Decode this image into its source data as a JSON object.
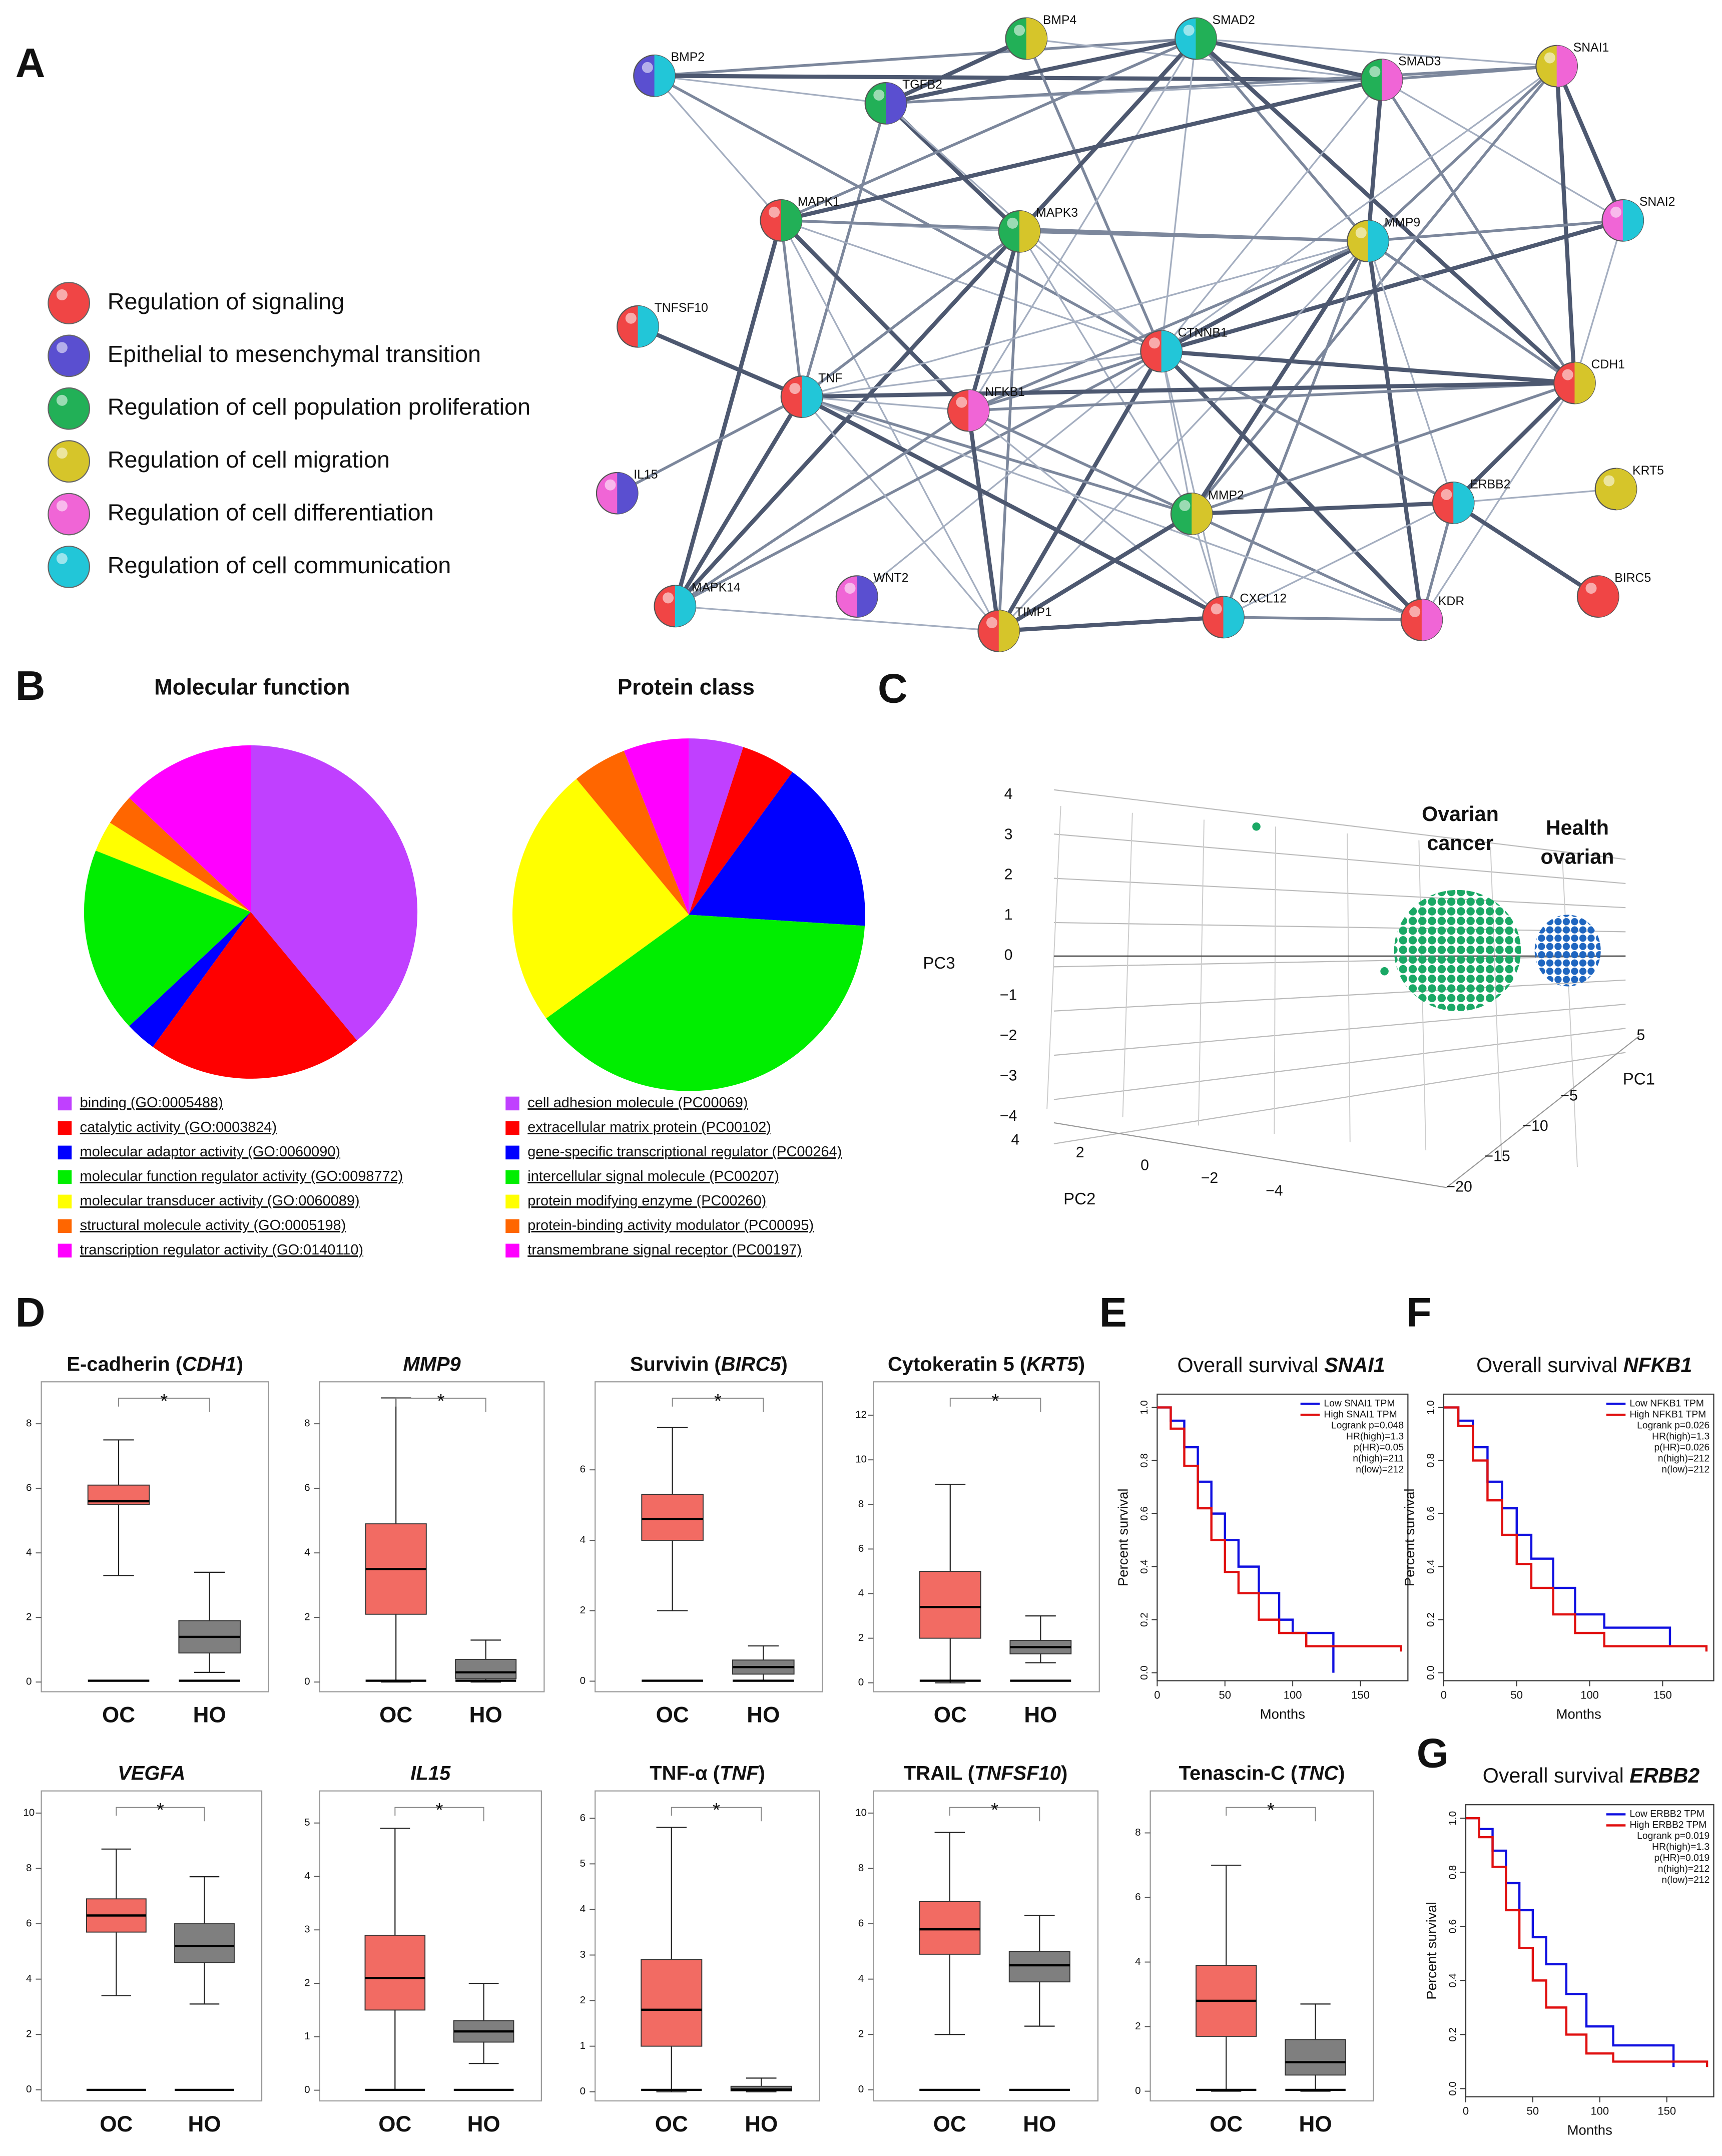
{
  "panel_labels": [
    "A",
    "B",
    "C",
    "D",
    "E",
    "F",
    "G"
  ],
  "network": {
    "nodes": [
      "BMP2",
      "BMP4",
      "SMAD2",
      "SMAD3",
      "SNAI1",
      "TGFB2",
      "MAPK1",
      "MAPK3",
      "MMP9",
      "SNAI2",
      "TNFSF10",
      "CTNNB1",
      "CDH1",
      "TNF",
      "NFKB1",
      "IL15",
      "MMP2",
      "ERBB2",
      "KRT5",
      "WNT2",
      "MAPK14",
      "TIMP1",
      "CXCL12",
      "KDR",
      "BIRC5"
    ]
  },
  "legend": [
    {
      "label": "Regulation of signaling",
      "color": "#f04545"
    },
    {
      "label": "Epithelial to mesenchymal transition",
      "color": "#5a4fd0"
    },
    {
      "label": "Regulation of cell population proliferation",
      "color": "#22b057"
    },
    {
      "label": "Regulation of cell migration",
      "color": "#d6c52a"
    },
    {
      "label": "Regulation of cell differentiation",
      "color": "#f065d6"
    },
    {
      "label": "Regulation of cell communication",
      "color": "#22c6d8"
    }
  ],
  "pies": [
    {
      "type": "pie",
      "title": "Molecular function",
      "categories": [
        "binding (GO:0005488)",
        "catalytic activity (GO:0003824)",
        "molecular adaptor activity (GO:0060090)",
        "molecular function regulator activity (GO:0098772)",
        "molecular transducer activity (GO:0060089)",
        "structural molecule activity (GO:0005198)",
        "transcription regulator activity (GO:0140110)"
      ],
      "values": [
        39,
        21,
        3,
        18,
        3,
        3,
        13
      ],
      "colors": [
        "#c040ff",
        "#ff0000",
        "#0000ff",
        "#00ee00",
        "#ffff00",
        "#ff6600",
        "#ff00ff"
      ]
    },
    {
      "type": "pie",
      "title": "Protein class",
      "categories": [
        "cell adhesion molecule (PC00069)",
        "extracellular matrix protein (PC00102)",
        "gene-specific transcriptional regulator (PC00264)",
        "intercellular signal molecule (PC00207)",
        "protein modifying enzyme (PC00260)",
        "protein-binding activity modulator (PC00095)",
        "transmembrane signal receptor (PC00197)"
      ],
      "values": [
        5,
        5,
        16,
        39,
        24,
        5,
        6
      ],
      "colors": [
        "#c040ff",
        "#ff0000",
        "#0000ff",
        "#00ee00",
        "#ffff00",
        "#ff6600",
        "#ff00ff"
      ]
    }
  ],
  "pca": {
    "type": "scatter3d",
    "x_label": "PC1",
    "y_label": "PC2",
    "z_label": "PC3",
    "xticks": [
      5,
      {
        "value": -5,
        "label": "−5"
      },
      {
        "value": -10,
        "label": "−10"
      },
      {
        "value": -15,
        "label": "−15"
      },
      {
        "value": -20,
        "label": "−20"
      }
    ],
    "yticks": [
      4,
      2,
      0,
      {
        "value": -2,
        "label": "−2"
      },
      {
        "value": -4,
        "label": "−4"
      }
    ],
    "zticks": [
      4,
      3,
      2,
      1,
      0,
      {
        "value": -1,
        "label": "−1"
      },
      {
        "value": -2,
        "label": "−2"
      },
      {
        "value": -3,
        "label": "−3"
      },
      {
        "value": -4,
        "label": "−4"
      }
    ],
    "groups": [
      {
        "label_lines": [
          "Ovarian",
          "cancer"
        ],
        "color": "#1aa865"
      },
      {
        "label_lines": [
          "Health",
          "ovarian"
        ],
        "color": "#1f66c0"
      }
    ]
  },
  "boxplots": [
    {
      "type": "box",
      "title": [
        {
          "text": "E-cadherin ("
        },
        {
          "text": "CDH1",
          "italic": true
        },
        {
          "text": ")"
        }
      ],
      "ylim": [
        -0.3,
        9.3
      ],
      "yticks": [
        0,
        2,
        4,
        6,
        8
      ],
      "significance": "*",
      "groups": [
        {
          "name": "OC",
          "color": "#f26b63",
          "whisker_low": 3.3,
          "q1": 5.5,
          "median": 5.6,
          "q3": 6.1,
          "whisker_high": 7.5
        },
        {
          "name": "HO",
          "color": "#7f7f7f",
          "whisker_low": 0.3,
          "q1": 0.9,
          "median": 1.4,
          "q3": 1.9,
          "whisker_high": 3.4
        }
      ]
    },
    {
      "type": "box",
      "title": [
        {
          "text": "MMP9",
          "italic": true
        }
      ],
      "ylim": [
        -0.3,
        9.3
      ],
      "yticks": [
        0,
        2,
        4,
        6,
        8
      ],
      "significance": "*",
      "groups": [
        {
          "name": "OC",
          "color": "#f26b63",
          "whisker_low": 0,
          "q1": 2.1,
          "median": 3.5,
          "q3": 4.9,
          "whisker_high": 8.8
        },
        {
          "name": "HO",
          "color": "#7f7f7f",
          "whisker_low": 0,
          "q1": 0.1,
          "median": 0.3,
          "q3": 0.7,
          "whisker_high": 1.3
        }
      ]
    },
    {
      "type": "box",
      "title": [
        {
          "text": "Survivin ("
        },
        {
          "text": "BIRC5",
          "italic": true
        },
        {
          "text": ")"
        }
      ],
      "ylim": [
        -0.3,
        8.5
      ],
      "yticks": [
        0,
        2,
        4,
        6
      ],
      "significance": "*",
      "groups": [
        {
          "name": "OC",
          "color": "#f26b63",
          "whisker_low": 2.0,
          "q1": 4.0,
          "median": 4.6,
          "q3": 5.3,
          "whisker_high": 7.2
        },
        {
          "name": "HO",
          "color": "#7f7f7f",
          "whisker_low": 0,
          "q1": 0.2,
          "median": 0.4,
          "q3": 0.6,
          "whisker_high": 1.0
        }
      ]
    },
    {
      "type": "box",
      "title": [
        {
          "text": "Cytokeratin 5 ("
        },
        {
          "text": "KRT5",
          "italic": true
        },
        {
          "text": ")"
        }
      ],
      "ylim": [
        -0.4,
        13.5
      ],
      "yticks": [
        0,
        2,
        4,
        6,
        8,
        10,
        12
      ],
      "significance": "*",
      "groups": [
        {
          "name": "OC",
          "color": "#f26b63",
          "whisker_low": 0,
          "q1": 2.0,
          "median": 3.4,
          "q3": 5.0,
          "whisker_high": 8.9
        },
        {
          "name": "HO",
          "color": "#7f7f7f",
          "whisker_low": 0.9,
          "q1": 1.3,
          "median": 1.6,
          "q3": 1.9,
          "whisker_high": 3.0
        }
      ]
    },
    {
      "type": "box",
      "title": [
        {
          "text": "VEGFA",
          "italic": true
        }
      ],
      "ylim": [
        -0.4,
        10.8
      ],
      "yticks": [
        0,
        2,
        4,
        6,
        8,
        10
      ],
      "significance": "*",
      "groups": [
        {
          "name": "OC",
          "color": "#f26b63",
          "whisker_low": 3.4,
          "q1": 5.7,
          "median": 6.3,
          "q3": 6.9,
          "whisker_high": 8.7
        },
        {
          "name": "HO",
          "color": "#7f7f7f",
          "whisker_low": 3.1,
          "q1": 4.6,
          "median": 5.2,
          "q3": 6.0,
          "whisker_high": 7.7
        }
      ]
    },
    {
      "type": "box",
      "title": [
        {
          "text": "IL15",
          "italic": true
        }
      ],
      "ylim": [
        -0.2,
        5.6
      ],
      "yticks": [
        0,
        1,
        2,
        3,
        4,
        5
      ],
      "significance": "*",
      "groups": [
        {
          "name": "OC",
          "color": "#f26b63",
          "whisker_low": 0,
          "q1": 1.5,
          "median": 2.1,
          "q3": 2.9,
          "whisker_high": 4.9
        },
        {
          "name": "HO",
          "color": "#7f7f7f",
          "whisker_low": 0.5,
          "q1": 0.9,
          "median": 1.1,
          "q3": 1.3,
          "whisker_high": 2.0
        }
      ]
    },
    {
      "type": "box",
      "title": [
        {
          "text": "TNF-α ("
        },
        {
          "text": "TNF",
          "italic": true
        },
        {
          "text": ")"
        }
      ],
      "ylim": [
        -0.2,
        6.6
      ],
      "yticks": [
        0,
        1,
        2,
        3,
        4,
        5,
        6
      ],
      "significance": "*",
      "groups": [
        {
          "name": "OC",
          "color": "#f26b63",
          "whisker_low": 0,
          "q1": 1.0,
          "median": 1.8,
          "q3": 2.9,
          "whisker_high": 5.8
        },
        {
          "name": "HO",
          "color": "#7f7f7f",
          "whisker_low": 0,
          "q1": 0.02,
          "median": 0.05,
          "q3": 0.12,
          "whisker_high": 0.3
        }
      ]
    },
    {
      "type": "box",
      "title": [
        {
          "text": "TRAIL ("
        },
        {
          "text": "TNFSF10",
          "italic": true
        },
        {
          "text": ")"
        }
      ],
      "ylim": [
        -0.4,
        10.8
      ],
      "yticks": [
        0,
        2,
        4,
        6,
        8,
        10
      ],
      "significance": "*",
      "groups": [
        {
          "name": "OC",
          "color": "#f26b63",
          "whisker_low": 2.0,
          "q1": 4.9,
          "median": 5.8,
          "q3": 6.8,
          "whisker_high": 9.3
        },
        {
          "name": "HO",
          "color": "#7f7f7f",
          "whisker_low": 2.3,
          "q1": 3.9,
          "median": 4.5,
          "q3": 5.0,
          "whisker_high": 6.3
        }
      ]
    },
    {
      "type": "box",
      "title": [
        {
          "text": "Tenascin-C ("
        },
        {
          "text": "TNC",
          "italic": true
        },
        {
          "text": ")"
        }
      ],
      "ylim": [
        -0.3,
        9.3
      ],
      "yticks": [
        0,
        2,
        4,
        6,
        8
      ],
      "significance": "*",
      "groups": [
        {
          "name": "OC",
          "color": "#f26b63",
          "whisker_low": 0,
          "q1": 1.7,
          "median": 2.8,
          "q3": 3.9,
          "whisker_high": 7.0
        },
        {
          "name": "HO",
          "color": "#7f7f7f",
          "whisker_low": 0,
          "q1": 0.5,
          "median": 0.9,
          "q3": 1.6,
          "whisker_high": 2.7
        }
      ]
    }
  ],
  "survival": [
    {
      "type": "line",
      "title": [
        {
          "text": "Overall survival "
        },
        {
          "text": "SNAI1",
          "bold": true,
          "italic": true
        }
      ],
      "xlabel": "Months",
      "ylabel": "Percent survival",
      "xlim": [
        0,
        185
      ],
      "ylim": [
        -0.03,
        1.05
      ],
      "xticks": [
        0,
        50,
        100,
        150
      ],
      "yticks": [
        {
          "value": 0,
          "label": "0.0"
        },
        {
          "value": 0.2,
          "label": "0.2"
        },
        {
          "value": 0.4,
          "label": "0.4"
        },
        {
          "value": 0.6,
          "label": "0.6"
        },
        {
          "value": 0.8,
          "label": "0.8"
        },
        {
          "value": 1,
          "label": "1.0"
        }
      ],
      "series": [
        {
          "name": "Low SNAI1 TPM",
          "color": "#1010e0",
          "x": [
            0,
            10,
            20,
            30,
            40,
            50,
            60,
            75,
            90,
            100,
            130
          ],
          "values": [
            1,
            0.95,
            0.85,
            0.72,
            0.6,
            0.5,
            0.4,
            0.3,
            0.2,
            0.15,
            0
          ]
        },
        {
          "name": "High SNAI1 TPM",
          "color": "#e01010",
          "x": [
            0,
            10,
            20,
            30,
            40,
            50,
            60,
            75,
            90,
            110,
            180
          ],
          "values": [
            1,
            0.92,
            0.78,
            0.62,
            0.5,
            0.38,
            0.3,
            0.2,
            0.15,
            0.1,
            0.08
          ]
        }
      ],
      "stats": [
        "Logrank p=0.048",
        "HR(high)=1.3",
        "p(HR)=0.05",
        "n(high)=211",
        "n(low)=212"
      ]
    },
    {
      "type": "line",
      "title": [
        {
          "text": "Overall survival "
        },
        {
          "text": "NFKB1",
          "bold": true,
          "italic": true
        }
      ],
      "xlabel": "Months",
      "ylabel": "Percent survival",
      "xlim": [
        0,
        185
      ],
      "ylim": [
        -0.03,
        1.05
      ],
      "xticks": [
        0,
        50,
        100,
        150
      ],
      "yticks": [
        {
          "value": 0,
          "label": "0.0"
        },
        {
          "value": 0.2,
          "label": "0.2"
        },
        {
          "value": 0.4,
          "label": "0.4"
        },
        {
          "value": 0.6,
          "label": "0.6"
        },
        {
          "value": 0.8,
          "label": "0.8"
        },
        {
          "value": 1,
          "label": "1.0"
        }
      ],
      "series": [
        {
          "name": "Low NFKB1 TPM",
          "color": "#1010e0",
          "x": [
            0,
            10,
            20,
            30,
            40,
            50,
            60,
            75,
            90,
            110,
            155
          ],
          "values": [
            1,
            0.95,
            0.85,
            0.72,
            0.62,
            0.52,
            0.43,
            0.32,
            0.22,
            0.17,
            0.1
          ]
        },
        {
          "name": "High NFKB1 TPM",
          "color": "#e01010",
          "x": [
            0,
            10,
            20,
            30,
            40,
            50,
            60,
            75,
            90,
            110,
            180
          ],
          "values": [
            1,
            0.93,
            0.8,
            0.65,
            0.52,
            0.41,
            0.32,
            0.22,
            0.15,
            0.1,
            0.08
          ]
        }
      ],
      "stats": [
        "Logrank p=0.026",
        "HR(high)=1.3",
        "p(HR)=0.026",
        "n(high)=212",
        "n(low)=212"
      ]
    },
    {
      "type": "line",
      "title": [
        {
          "text": "Overall survival "
        },
        {
          "text": "ERBB2",
          "bold": true,
          "italic": true
        }
      ],
      "xlabel": "Months",
      "ylabel": "Percent survival",
      "xlim": [
        0,
        185
      ],
      "ylim": [
        -0.03,
        1.05
      ],
      "xticks": [
        0,
        50,
        100,
        150
      ],
      "yticks": [
        {
          "value": 0,
          "label": "0.0"
        },
        {
          "value": 0.2,
          "label": "0.2"
        },
        {
          "value": 0.4,
          "label": "0.4"
        },
        {
          "value": 0.6,
          "label": "0.6"
        },
        {
          "value": 0.8,
          "label": "0.8"
        },
        {
          "value": 1,
          "label": "1.0"
        }
      ],
      "series": [
        {
          "name": "Low ERBB2 TPM",
          "color": "#1010e0",
          "x": [
            0,
            10,
            20,
            30,
            40,
            50,
            60,
            75,
            90,
            110,
            155
          ],
          "values": [
            1,
            0.96,
            0.88,
            0.76,
            0.66,
            0.56,
            0.46,
            0.35,
            0.23,
            0.16,
            0.08
          ]
        },
        {
          "name": "High ERBB2 TPM",
          "color": "#e01010",
          "x": [
            0,
            10,
            20,
            30,
            40,
            50,
            60,
            75,
            90,
            110,
            180
          ],
          "values": [
            1,
            0.93,
            0.82,
            0.66,
            0.52,
            0.4,
            0.3,
            0.2,
            0.13,
            0.1,
            0.08
          ]
        }
      ],
      "stats": [
        "Logrank p=0.019",
        "HR(high)=1.3",
        "p(HR)=0.019",
        "n(high)=212",
        "n(low)=212"
      ]
    }
  ]
}
